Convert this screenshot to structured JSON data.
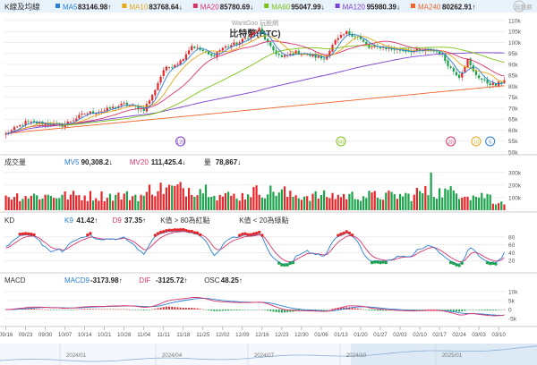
{
  "colors": {
    "up": "#e8262a",
    "down": "#1aa34a",
    "grid": "#e3e3e3",
    "axis": "#555555",
    "ma5": "#2a7fd4",
    "ma10": "#e6a817",
    "ma20": "#d9336b",
    "ma60": "#7cc214",
    "ma120": "#7b3fd1",
    "ma240": "#f0642a",
    "k": "#2a7fd4",
    "d": "#d9336b",
    "macd": "#2a7fd4",
    "dif": "#d9336b",
    "dot": "#e8262a",
    "header": "#e8f2fb"
  },
  "header": {
    "section": "K線及均線",
    "ma": [
      {
        "label": "MA5",
        "value": "83146.98↑",
        "color": "#2a7fd4"
      },
      {
        "label": "MA10",
        "value": "83768.64↓",
        "color": "#e6a817"
      },
      {
        "label": "MA20",
        "value": "85780.69↓",
        "color": "#d9336b"
      },
      {
        "label": "MA60",
        "value": "95047.99↓",
        "color": "#7cc214"
      },
      {
        "label": "MA120",
        "value": "95980.39↓",
        "color": "#7b3fd1"
      },
      {
        "label": "MA240",
        "value": "80262.91↑",
        "color": "#f0642a"
      }
    ],
    "logo": "玩股網"
  },
  "price_panel": {
    "watermark": "WantGoo 玩股網",
    "title": "比特幣(BTC)",
    "y_ticks": [
      "110k",
      "105k",
      "100k",
      "95k",
      "90k",
      "85k",
      "80k",
      "75k",
      "70k",
      "65k",
      "60k",
      "55k",
      "50k"
    ],
    "ylim": [
      50000,
      112000
    ],
    "markers": [
      {
        "label": "120",
        "color": "#7b3fd1",
        "bar": 62
      },
      {
        "label": "60",
        "color": "#7cc214",
        "bar": 119
      },
      {
        "label": "20",
        "color": "#d9336b",
        "bar": 158
      },
      {
        "label": "10",
        "color": "#e6a817",
        "bar": 167
      },
      {
        "label": "5",
        "color": "#2a7fd4",
        "bar": 172
      }
    ]
  },
  "volume_panel": {
    "title": "成交量",
    "labels": [
      {
        "label": "MV5",
        "value": "90,308.2↓",
        "color": "#2a7fd4"
      },
      {
        "label": "MV20",
        "value": "111,425.4↓",
        "color": "#d9336b"
      },
      {
        "label": "量",
        "value": "78,867↓",
        "color": "#333333"
      }
    ],
    "y_ticks": [
      "300k",
      "200k",
      "100k"
    ],
    "ylim": [
      0,
      320000
    ]
  },
  "kd_panel": {
    "title": "KD",
    "labels": [
      {
        "label": "K9",
        "value": "41.42↑",
        "color": "#2a7fd4"
      },
      {
        "label": "D9",
        "value": "37.35↑",
        "color": "#d9336b"
      },
      {
        "label": "K值 > 80為紅點",
        "value": "",
        "color": "#333333"
      },
      {
        "label": "K值 < 20為綠點",
        "value": "",
        "color": "#333333"
      }
    ],
    "y_ticks": [
      "80",
      "60",
      "40",
      "20"
    ],
    "ylim": [
      0,
      100
    ]
  },
  "macd_panel": {
    "title": "MACD",
    "labels": [
      {
        "label": "MACD9",
        "value": "-3173.98↑",
        "color": "#2a7fd4"
      },
      {
        "label": "DIF",
        "value": "-3125.72↑",
        "color": "#d9336b"
      },
      {
        "label": "OSC",
        "value": "48.25↑",
        "color": "#333333"
      }
    ],
    "y_ticks": [
      "10k",
      "5k",
      "0",
      "-5k"
    ],
    "ylim": [
      -8000,
      12000
    ]
  },
  "x_axis": {
    "date_labels": [
      "09/16",
      "09/23",
      "09/30",
      "10/07",
      "10/14",
      "10/21",
      "10/28",
      "11/04",
      "11/11",
      "11/18",
      "11/25",
      "12/02",
      "12/09",
      "12/16",
      "12/23",
      "12/30",
      "01/06",
      "01/13",
      "01/20",
      "01/27",
      "02/03",
      "02/10",
      "02/17",
      "02/24",
      "03/03",
      "03/10"
    ],
    "overview_labels": [
      "2024/01",
      "2024/04",
      "2024/07",
      "2024/10",
      "2025/01"
    ]
  },
  "chart_data": {
    "type": "candlestick",
    "title": "比特幣(BTC)",
    "bars": 178,
    "start_date": "2024-09-16",
    "close_anchors": [
      [
        0,
        58200
      ],
      [
        7,
        63500
      ],
      [
        14,
        63000
      ],
      [
        20,
        62200
      ],
      [
        28,
        67500
      ],
      [
        35,
        69000
      ],
      [
        42,
        71800
      ],
      [
        49,
        69500
      ],
      [
        52,
        75800
      ],
      [
        56,
        87500
      ],
      [
        62,
        91500
      ],
      [
        66,
        98500
      ],
      [
        70,
        96000
      ],
      [
        73,
        93500
      ],
      [
        77,
        97500
      ],
      [
        83,
        100000
      ],
      [
        90,
        106000
      ],
      [
        94,
        97500
      ],
      [
        98,
        93000
      ],
      [
        103,
        95500
      ],
      [
        108,
        94200
      ],
      [
        113,
        92500
      ],
      [
        117,
        100500
      ],
      [
        121,
        104500
      ],
      [
        125,
        102500
      ],
      [
        129,
        97500
      ],
      [
        133,
        98000
      ],
      [
        137,
        96800
      ],
      [
        142,
        96300
      ],
      [
        147,
        96000
      ],
      [
        151,
        96500
      ],
      [
        154,
        95500
      ],
      [
        158,
        88200
      ],
      [
        161,
        84500
      ],
      [
        164,
        92000
      ],
      [
        166,
        86500
      ],
      [
        170,
        82000
      ],
      [
        174,
        80500
      ],
      [
        177,
        82800
      ]
    ],
    "ma240_range": [
      58500,
      80262.91
    ],
    "volume_peak_bar": 151,
    "last_values": {
      "MA5": 83146.98,
      "MA10": 83768.64,
      "MA20": 85780.69,
      "MA60": 95047.99,
      "MA120": 95980.39,
      "MA240": 80262.91,
      "MV5": 90308.2,
      "MV20": 111425.4,
      "Volume": 78867,
      "K9": 41.42,
      "D9": 37.35,
      "MACD9": -3173.98,
      "DIF": -3125.72,
      "OSC": 48.25
    }
  }
}
